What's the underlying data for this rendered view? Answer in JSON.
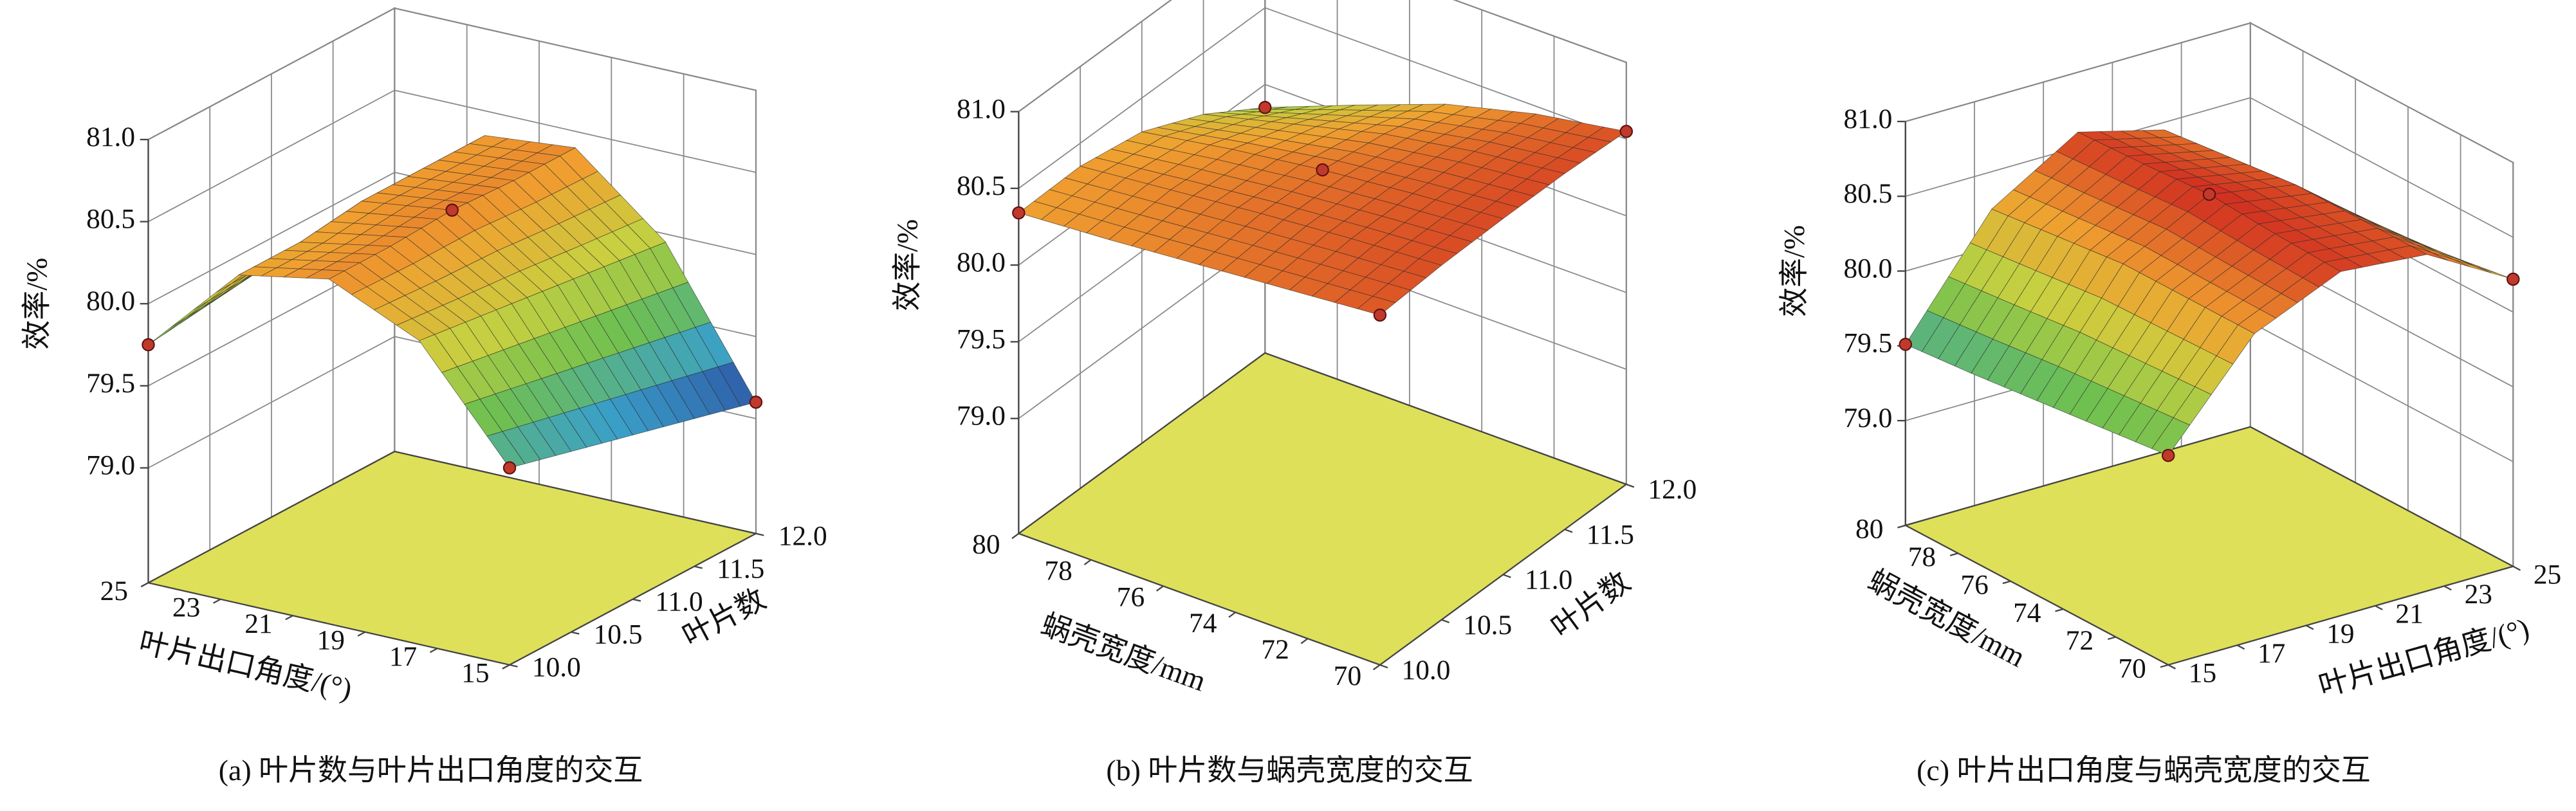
{
  "chart_data": [
    {
      "type": "surface",
      "caption": "(a) 叶片数与叶片出口角度的交互",
      "xlabel": "叶片出口角度/(°)",
      "ylabel": "叶片数",
      "zlabel": "效率/%",
      "x": [
        15,
        17.5,
        20,
        22.5,
        25
      ],
      "y": [
        10,
        10.5,
        11,
        11.5,
        12
      ],
      "z": [
        [
          79.5,
          80.15,
          80.4,
          80.3,
          79.75
        ],
        [
          79.4,
          80.1,
          80.4,
          80.3,
          79.8
        ],
        [
          79.3,
          80.05,
          80.42,
          80.35,
          79.85
        ],
        [
          79.2,
          80.0,
          80.4,
          80.35,
          79.85
        ],
        [
          79.1,
          79.95,
          80.4,
          80.35,
          79.85
        ]
      ],
      "points": {
        "x": [
          25,
          20,
          15,
          15
        ],
        "y": [
          10,
          11,
          10,
          12
        ],
        "z": [
          79.75,
          80.42,
          79.5,
          79.1
        ]
      },
      "xlim": [
        15,
        25
      ],
      "ylim": [
        10,
        12
      ],
      "zlim": [
        78.3,
        81.0
      ],
      "xticks": [
        15,
        17,
        19,
        21,
        23,
        25
      ],
      "yticks": [
        {
          "value": 10,
          "label": "10.0"
        },
        10.5,
        {
          "value": 11,
          "label": "11.0"
        },
        11.5,
        {
          "value": 12,
          "label": "12.0"
        }
      ],
      "zticks": [
        {
          "value": 79,
          "label": "79.0"
        },
        79.5,
        {
          "value": 80,
          "label": "80.0"
        },
        80.5,
        {
          "value": 81,
          "label": "81.0"
        }
      ]
    },
    {
      "type": "surface",
      "caption": "(b) 叶片数与蜗壳宽度的交互",
      "xlabel": "叶片数",
      "ylabel": "蜗壳宽度/mm",
      "zlabel": "效率/%",
      "x": [
        10,
        10.5,
        11,
        11.5,
        12
      ],
      "y": [
        70,
        72.5,
        75,
        77.5,
        80
      ],
      "z": [
        [
          80.53,
          80.56,
          80.57,
          80.57,
          80.55
        ],
        [
          80.48,
          80.52,
          80.52,
          80.5,
          80.45
        ],
        [
          80.43,
          80.47,
          80.46,
          80.4,
          80.3
        ],
        [
          80.38,
          80.41,
          80.38,
          80.25,
          80.08
        ],
        [
          80.34,
          80.35,
          80.28,
          80.1,
          79.85
        ]
      ],
      "points": {
        "x": [
          10,
          10,
          12,
          12,
          11
        ],
        "y": [
          80,
          70,
          70,
          80,
          75
        ],
        "z": [
          80.34,
          80.53,
          80.55,
          79.85,
          80.46
        ]
      },
      "xlim": [
        10,
        12
      ],
      "ylim": [
        70,
        80
      ],
      "zlim": [
        78.25,
        81.0
      ],
      "xticks": [
        {
          "value": 10,
          "label": "10.0"
        },
        10.5,
        {
          "value": 11,
          "label": "11.0"
        },
        11.5,
        {
          "value": 12,
          "label": "12.0"
        }
      ],
      "yticks": [
        70,
        72,
        74,
        76,
        78,
        80
      ],
      "zticks": [
        {
          "value": 79,
          "label": "79.0"
        },
        79.5,
        {
          "value": 80,
          "label": "80.0"
        },
        80.5,
        {
          "value": 81,
          "label": "81.0"
        }
      ]
    },
    {
      "type": "surface",
      "caption": "(c) 叶片出口角度与蜗壳宽度的交互",
      "xlabel": "叶片出口角度/(°)",
      "ylabel": "蜗壳宽度/mm",
      "zlabel": "效率/%",
      "x": [
        15,
        17.5,
        20,
        22.5,
        25
      ],
      "y": [
        70,
        72.5,
        75,
        77.5,
        80
      ],
      "z": [
        [
          79.7,
          80.35,
          80.6,
          80.55,
          80.22
        ],
        [
          79.65,
          80.35,
          80.62,
          80.55,
          80.15
        ],
        [
          79.6,
          80.35,
          80.65,
          80.55,
          80.1
        ],
        [
          79.55,
          80.3,
          80.62,
          80.5,
          80.0
        ],
        [
          79.51,
          80.25,
          80.6,
          80.45,
          79.9
        ]
      ],
      "points": {
        "x": [
          15,
          15,
          25,
          20
        ],
        "y": [
          80,
          70,
          70,
          75
        ],
        "z": [
          79.51,
          79.7,
          80.22,
          80.65
        ]
      },
      "xlim": [
        15,
        25
      ],
      "ylim": [
        70,
        80
      ],
      "zlim": [
        78.3,
        81.0
      ],
      "xticks": [
        15,
        17,
        19,
        21,
        23,
        25
      ],
      "yticks": [
        70,
        72,
        74,
        76,
        78,
        80
      ],
      "zticks": [
        {
          "value": 79,
          "label": "79.0"
        },
        79.5,
        {
          "value": 80,
          "label": "80.0"
        },
        80.5,
        {
          "value": 81,
          "label": "81.0"
        }
      ]
    }
  ]
}
